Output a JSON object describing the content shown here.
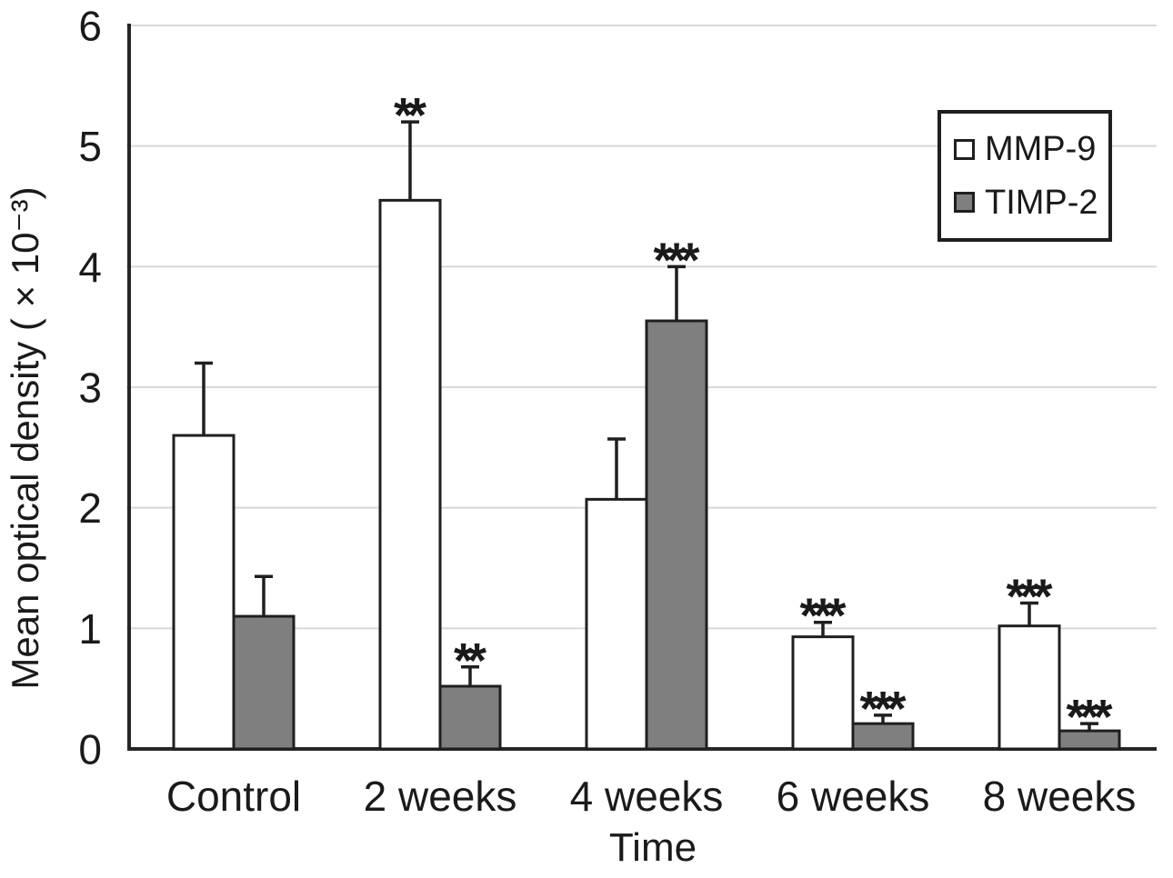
{
  "chart_data": {
    "type": "bar",
    "title": "",
    "xlabel": "Time",
    "ylabel": "Mean optical density ( × 10⁻³)",
    "categories": [
      "Control",
      "2 weeks",
      "4 weeks",
      "6 weeks",
      "8 weeks"
    ],
    "series": [
      {
        "name": "MMP-9",
        "fill": "#ffffff",
        "values": [
          2.6,
          4.55,
          2.07,
          0.93,
          1.02
        ],
        "error_up": [
          0.6,
          0.65,
          0.5,
          0.12,
          0.19
        ],
        "significance": [
          "",
          "**",
          "",
          "***",
          "***"
        ]
      },
      {
        "name": "TIMP-2",
        "fill": "#7f7f7f",
        "values": [
          1.1,
          0.52,
          3.55,
          0.21,
          0.15
        ],
        "error_up": [
          0.33,
          0.16,
          0.45,
          0.07,
          0.06
        ],
        "significance": [
          "",
          "**",
          "***",
          "***",
          "***"
        ]
      }
    ],
    "ylim": [
      0,
      6
    ],
    "yticks": [
      "0",
      "1",
      "2",
      "3",
      "4",
      "5",
      "6"
    ],
    "grid": "horizontal",
    "legend_position": "top-right",
    "error_bars": "upward whiskers with end caps",
    "colors": {
      "outline": "#1f1f1f",
      "axis": "#262626",
      "gridline": "#d8d8d8",
      "text": "#1a1a1a",
      "background": "#ffffff"
    }
  }
}
